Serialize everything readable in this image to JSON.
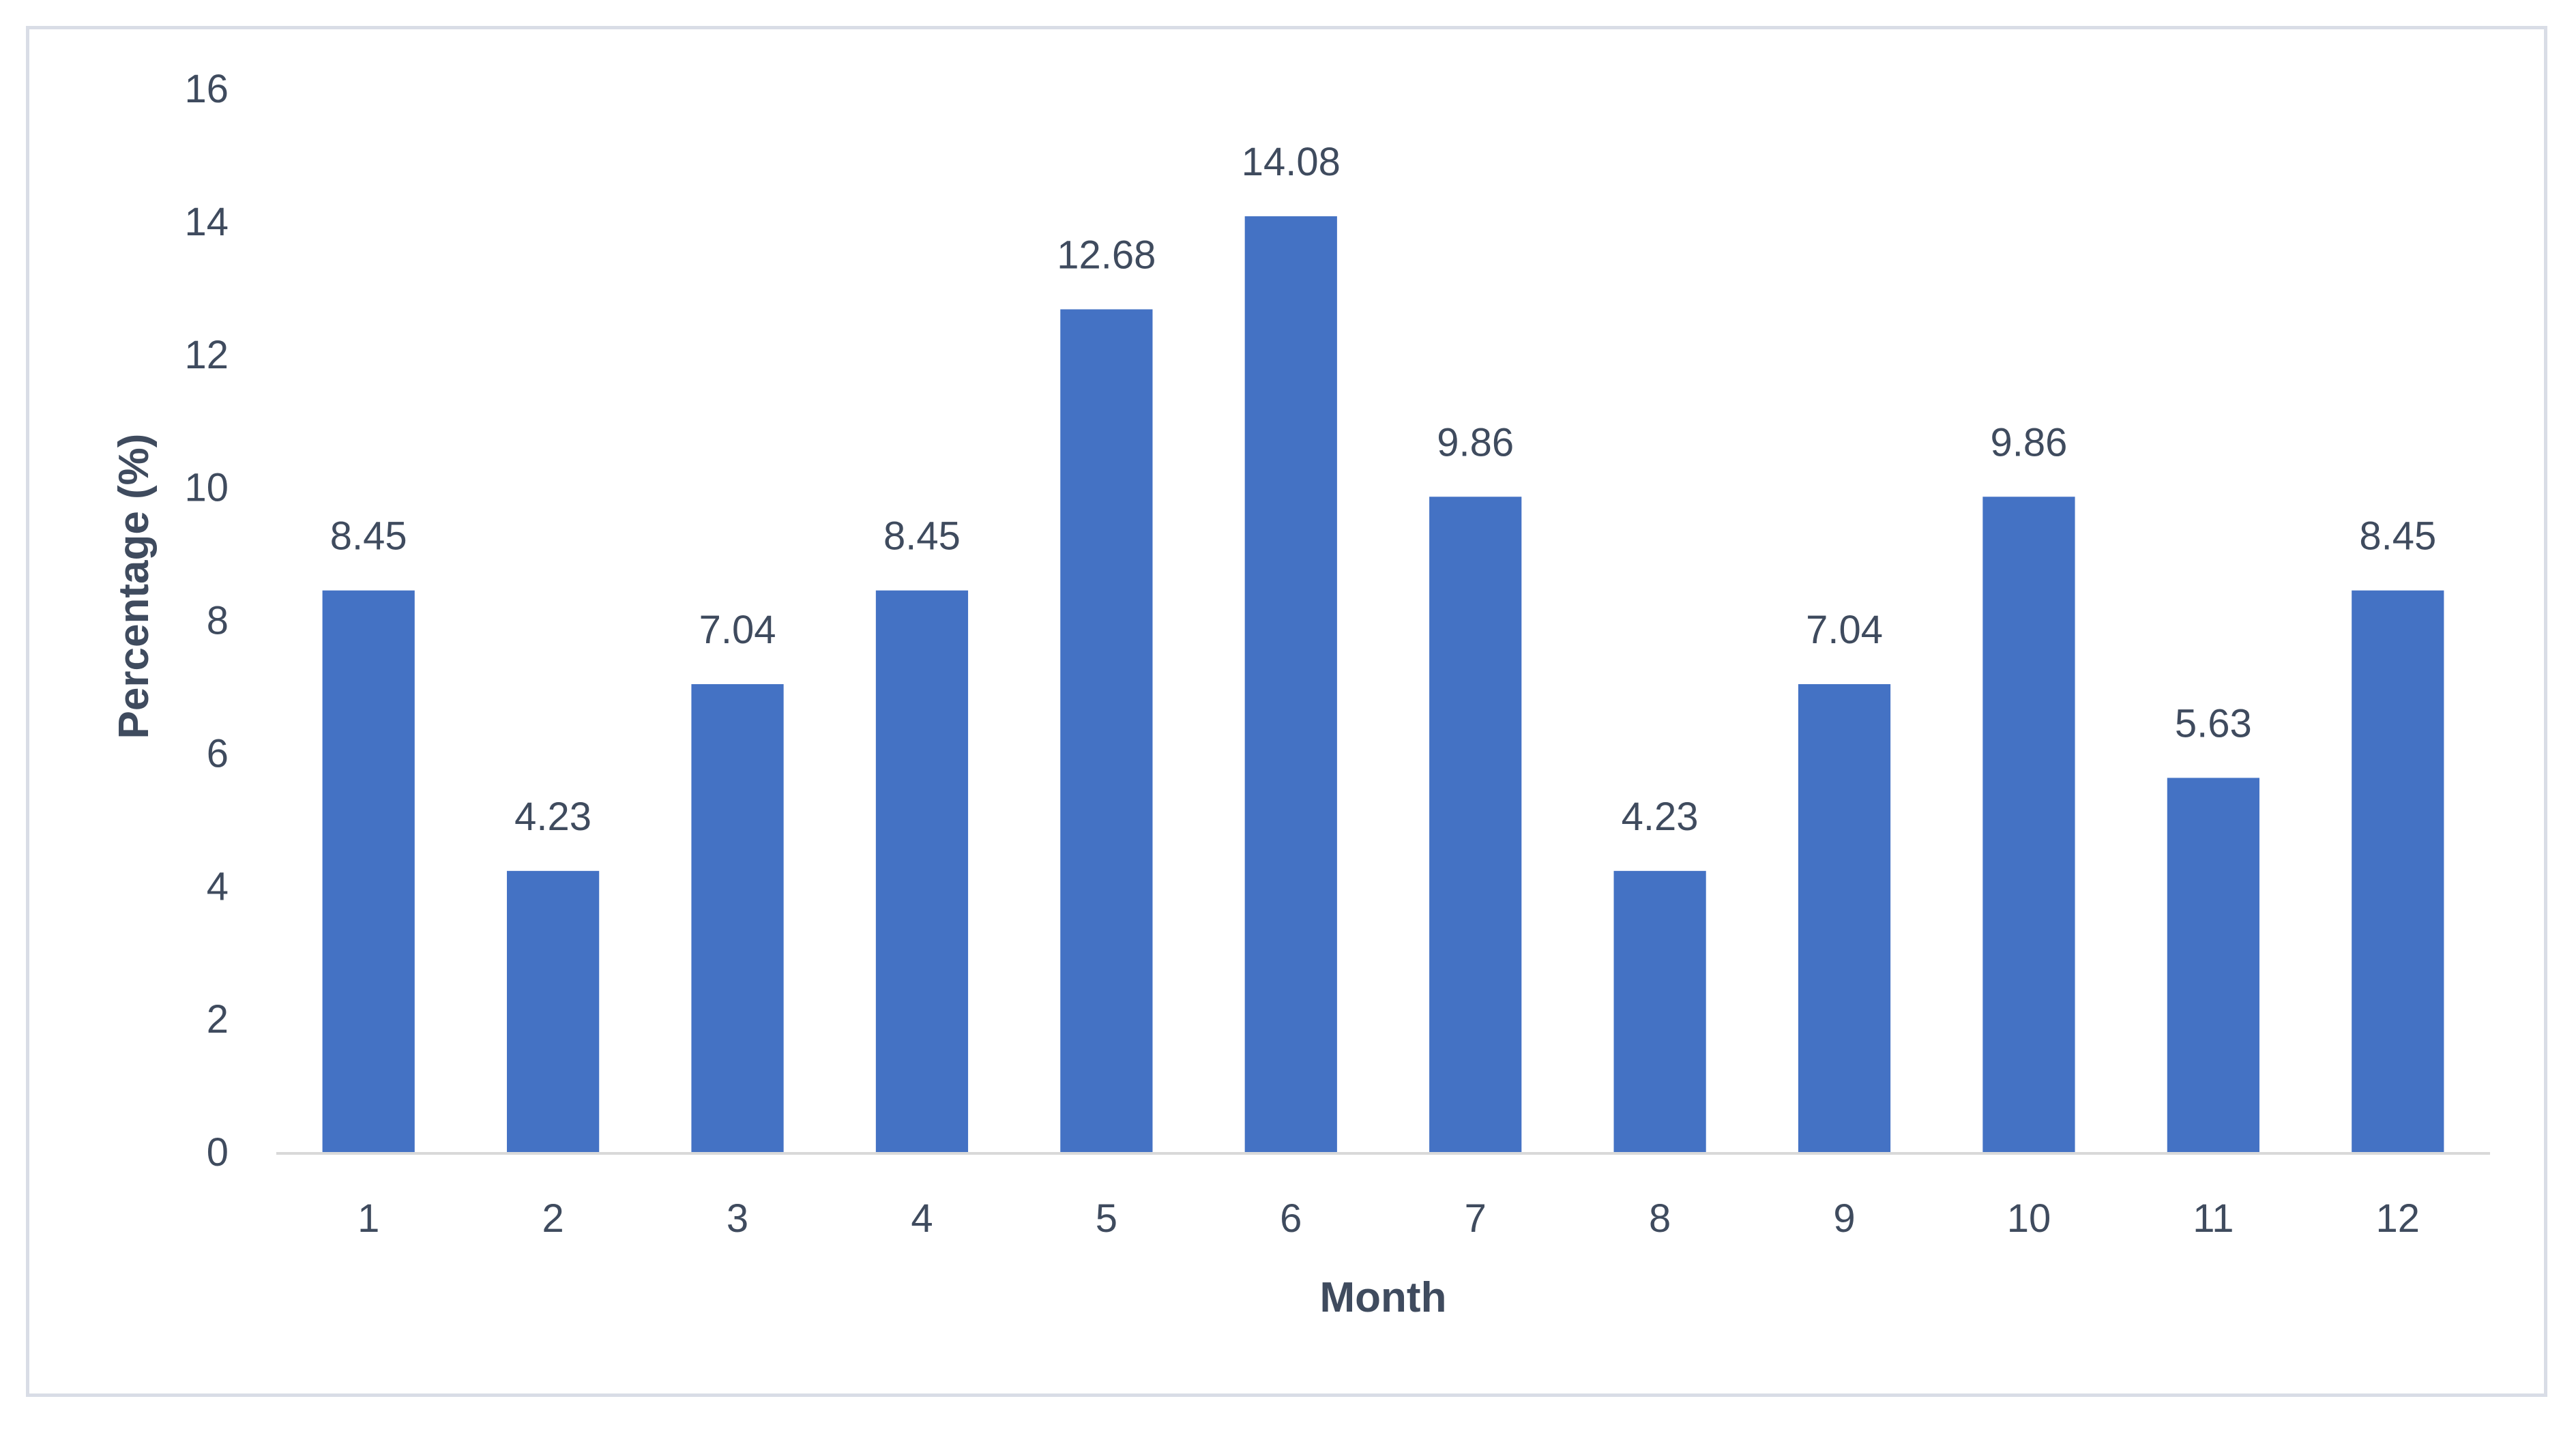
{
  "chart_data": {
    "type": "bar",
    "title": "",
    "xlabel": "Month",
    "ylabel": "Percentage (%)",
    "categories": [
      "1",
      "2",
      "3",
      "4",
      "5",
      "6",
      "7",
      "8",
      "9",
      "10",
      "11",
      "12"
    ],
    "values": [
      8.45,
      4.23,
      7.04,
      8.45,
      12.68,
      14.08,
      9.86,
      4.23,
      7.04,
      9.86,
      5.63,
      8.45
    ],
    "value_labels": [
      "8.45",
      "4.23",
      "7.04",
      "8.45",
      "12.68",
      "14.08",
      "9.86",
      "4.23",
      "7.04",
      "9.86",
      "5.63",
      "8.45"
    ],
    "ylim": [
      0,
      16
    ],
    "yticks": [
      "0",
      "2",
      "4",
      "6",
      "8",
      "10",
      "12",
      "14",
      "16"
    ],
    "grid": false,
    "legend": "none",
    "bar_color": "#4472c4"
  }
}
